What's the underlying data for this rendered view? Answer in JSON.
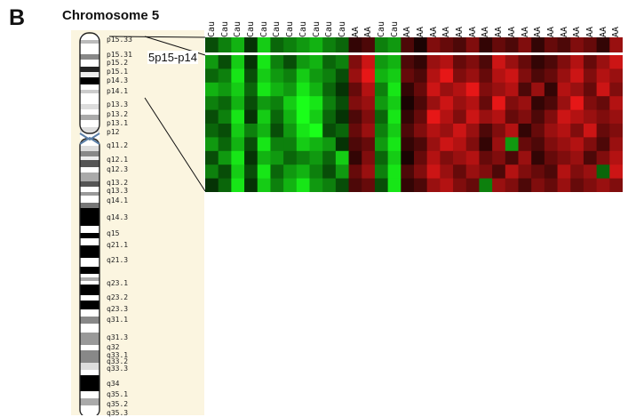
{
  "figure": {
    "panel_letter": "B",
    "chromosome_title": "Chromosome 5",
    "region_label": "5p15-p14"
  },
  "band_labels": [
    "p15.33",
    "p15.31",
    "p15.2",
    "p15.1",
    "p14.3",
    "p14.1",
    "p13.3",
    "p13.2",
    "p13.1",
    "p12",
    "q11.2",
    "q12.1",
    "q12.3",
    "q13.2",
    "q13.3",
    "q14.1",
    "q14.3",
    "q15",
    "q21.1",
    "q21.3",
    "q23.1",
    "q23.2",
    "q23.3",
    "q31.1",
    "q31.3",
    "q32",
    "q33.1",
    "q33.2",
    "q33.3",
    "q34",
    "q35.1",
    "q35.2",
    "q35.3"
  ],
  "samples": [
    "Cau",
    "Cau",
    "Cau",
    "Cau",
    "Cau",
    "Cau",
    "Cau",
    "Cau",
    "Cau",
    "Cau",
    "Cau",
    "AA",
    "AA",
    "Cau",
    "Cau",
    "AA",
    "AA",
    "AA",
    "AA",
    "AA",
    "AA",
    "AA",
    "AA",
    "AA",
    "AA",
    "AA",
    "AA",
    "AA",
    "AA",
    "AA",
    "AA",
    "AA"
  ],
  "colors": {
    "up": "#ff1a1a",
    "down": "#1aff1a",
    "neutral": "#000000",
    "background": "#fbf5e0"
  },
  "heatmap": {
    "top_row": [
      -0.3,
      -0.5,
      -0.7,
      -0.2,
      -0.8,
      -0.4,
      -0.5,
      -0.6,
      -0.7,
      -0.5,
      -0.4,
      0.2,
      0.3,
      -0.5,
      -0.6,
      0.3,
      0.1,
      0.5,
      0.4,
      0.3,
      0.5,
      0.2,
      0.4,
      0.3,
      0.5,
      0.2,
      0.4,
      0.3,
      0.5,
      0.4,
      0.2,
      0.6
    ],
    "rows": [
      [
        -0.6,
        -0.3,
        -0.8,
        -0.2,
        -0.9,
        -0.5,
        -0.3,
        -0.6,
        -0.7,
        -0.4,
        -0.5,
        0.5,
        0.8,
        -0.6,
        -0.7,
        0.3,
        0.2,
        0.6,
        0.7,
        0.4,
        0.5,
        0.3,
        0.8,
        0.6,
        0.4,
        0.2,
        0.3,
        0.5,
        0.7,
        0.4,
        0.6,
        0.8
      ],
      [
        -0.4,
        -0.5,
        -0.9,
        -0.3,
        -0.8,
        -0.6,
        -0.5,
        -0.8,
        -0.6,
        -0.5,
        -0.3,
        0.6,
        0.9,
        -0.7,
        -0.8,
        0.4,
        0.3,
        0.7,
        0.9,
        0.5,
        0.6,
        0.4,
        0.7,
        0.8,
        0.5,
        0.3,
        0.4,
        0.6,
        0.8,
        0.5,
        0.7,
        0.6
      ],
      [
        -0.7,
        -0.6,
        -0.8,
        -0.4,
        -0.9,
        -0.7,
        -0.6,
        -0.9,
        -0.7,
        -0.4,
        -0.2,
        0.4,
        0.7,
        -0.5,
        -0.9,
        0.2,
        0.4,
        0.8,
        0.6,
        0.7,
        0.9,
        0.5,
        0.6,
        0.7,
        0.3,
        0.6,
        0.2,
        0.7,
        0.6,
        0.4,
        0.8,
        0.5
      ],
      [
        -0.5,
        -0.4,
        -0.7,
        -0.3,
        -0.6,
        -0.5,
        -0.8,
        -1.0,
        -0.9,
        -0.5,
        -0.3,
        0.5,
        0.6,
        -0.6,
        -0.8,
        0.1,
        0.3,
        0.6,
        0.8,
        0.6,
        0.7,
        0.4,
        0.9,
        0.5,
        0.6,
        0.2,
        0.3,
        0.6,
        0.9,
        0.5,
        0.4,
        0.7
      ],
      [
        -0.3,
        -0.5,
        -0.9,
        -0.2,
        -0.8,
        -0.4,
        -0.7,
        -1.0,
        -0.8,
        -0.4,
        -0.2,
        0.3,
        0.5,
        -0.4,
        -0.9,
        0.2,
        0.4,
        0.9,
        0.7,
        0.5,
        0.8,
        0.6,
        0.7,
        0.4,
        0.5,
        0.3,
        0.5,
        0.8,
        0.7,
        0.6,
        0.5,
        0.6
      ],
      [
        -0.4,
        -0.3,
        -0.8,
        -0.5,
        -0.7,
        -0.3,
        -0.6,
        -0.9,
        -1.0,
        -0.3,
        -0.4,
        0.4,
        0.6,
        -0.5,
        -0.8,
        0.3,
        0.5,
        0.7,
        0.6,
        0.8,
        0.6,
        0.3,
        0.5,
        0.7,
        0.2,
        0.4,
        0.6,
        0.7,
        0.5,
        0.8,
        0.4,
        0.5
      ],
      [
        -0.6,
        -0.4,
        -0.7,
        -0.3,
        -0.9,
        -0.5,
        -0.5,
        -0.8,
        -0.7,
        -0.6,
        -0.2,
        0.3,
        0.4,
        -0.6,
        -0.9,
        0.2,
        0.3,
        0.6,
        0.8,
        0.7,
        0.5,
        0.2,
        0.6,
        -0.6,
        0.4,
        0.3,
        0.5,
        0.6,
        0.7,
        0.5,
        0.3,
        0.6
      ],
      [
        -0.3,
        -0.6,
        -0.9,
        -0.2,
        -0.7,
        -0.6,
        -0.4,
        -0.5,
        -0.6,
        -0.4,
        -0.8,
        0.2,
        0.5,
        -0.4,
        -0.8,
        0.1,
        0.4,
        0.7,
        0.5,
        0.6,
        0.7,
        0.4,
        0.5,
        0.3,
        0.6,
        0.2,
        0.4,
        0.5,
        0.6,
        0.3,
        0.5,
        0.7
      ],
      [
        -0.5,
        -0.3,
        -0.8,
        -0.3,
        -0.9,
        -0.4,
        -0.6,
        -0.7,
        -0.5,
        -0.3,
        -0.6,
        0.4,
        0.6,
        -0.5,
        -0.9,
        0.3,
        0.5,
        0.8,
        0.6,
        0.4,
        0.6,
        0.5,
        0.3,
        0.7,
        0.5,
        0.4,
        0.3,
        0.7,
        0.5,
        0.6,
        -0.4,
        0.8
      ],
      [
        -0.2,
        -0.4,
        -0.9,
        -0.2,
        -0.8,
        -0.5,
        -0.7,
        -0.9,
        -0.6,
        -0.5,
        -0.3,
        0.3,
        0.4,
        -0.3,
        -0.9,
        0.2,
        0.3,
        0.6,
        0.7,
        0.5,
        0.4,
        -0.5,
        0.6,
        0.5,
        0.3,
        0.5,
        0.4,
        0.6,
        0.4,
        0.5,
        0.6,
        0.5
      ]
    ]
  }
}
